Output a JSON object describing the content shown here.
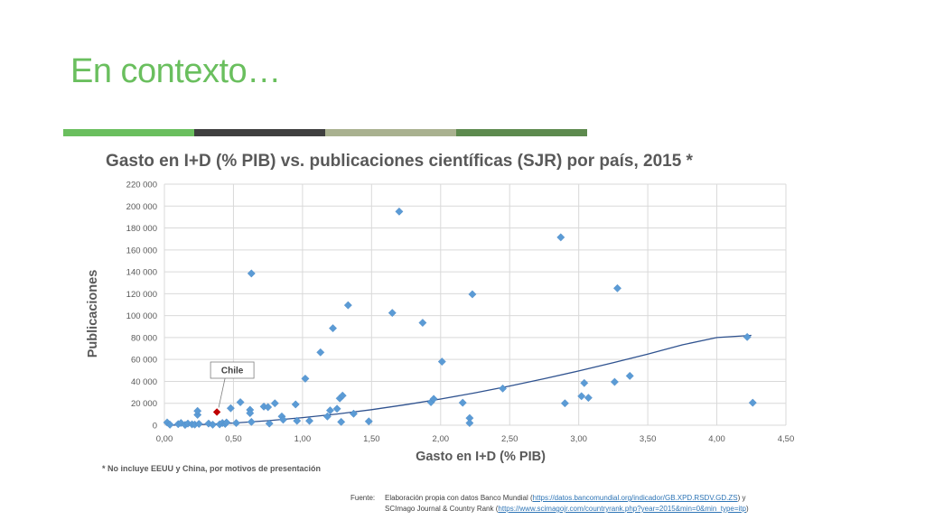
{
  "slide": {
    "title": "En contexto…",
    "bar_colors": [
      "#6abf5e",
      "#3f3f3f",
      "#a9b18f",
      "#5d8a4e"
    ]
  },
  "chart_data": {
    "type": "scatter",
    "title": "Gasto en I+D (% PIB) vs. publicaciones científicas (SJR) por país, 2015 *",
    "xlabel": "Gasto en I+D (% PIB)",
    "ylabel": "Publicaciones",
    "xlim": [
      0,
      4.5
    ],
    "ylim": [
      0,
      220000
    ],
    "x_ticks": [
      "0,00",
      "0,50",
      "1,00",
      "1,50",
      "2,00",
      "2,50",
      "3,00",
      "3,50",
      "4,00",
      "4,50"
    ],
    "y_ticks": [
      "0",
      "20 000",
      "40 000",
      "60 000",
      "80 000",
      "100 000",
      "120 000",
      "140 000",
      "160 000",
      "180 000",
      "200 000",
      "220 000"
    ],
    "grid": true,
    "point_color": "#5b9bd5",
    "highlight_color": "#c00000",
    "trend_color": "#2f528f",
    "highlight": {
      "label": "Chile",
      "x": 0.38,
      "y": 12000
    },
    "trendline": {
      "type": "power",
      "x": [
        0.05,
        0.25,
        0.5,
        0.75,
        1.0,
        1.25,
        1.5,
        1.75,
        2.0,
        2.25,
        2.5,
        2.75,
        3.0,
        3.25,
        3.5,
        3.75,
        4.0,
        4.25
      ],
      "y": [
        0,
        500,
        2000,
        4100,
        6900,
        10200,
        14200,
        18800,
        23900,
        29600,
        35800,
        42400,
        49500,
        57000,
        64900,
        73300,
        80000,
        82000
      ]
    },
    "points": [
      {
        "x": 0.02,
        "y": 2500
      },
      {
        "x": 0.04,
        "y": 500
      },
      {
        "x": 0.1,
        "y": 1000
      },
      {
        "x": 0.12,
        "y": 2000
      },
      {
        "x": 0.15,
        "y": 300
      },
      {
        "x": 0.17,
        "y": 1500
      },
      {
        "x": 0.2,
        "y": 800
      },
      {
        "x": 0.22,
        "y": 600
      },
      {
        "x": 0.24,
        "y": 9500
      },
      {
        "x": 0.24,
        "y": 13000
      },
      {
        "x": 0.25,
        "y": 1200
      },
      {
        "x": 0.32,
        "y": 1500
      },
      {
        "x": 0.35,
        "y": 500
      },
      {
        "x": 0.4,
        "y": 800
      },
      {
        "x": 0.42,
        "y": 2000
      },
      {
        "x": 0.44,
        "y": 1200
      },
      {
        "x": 0.45,
        "y": 2500
      },
      {
        "x": 0.48,
        "y": 15500
      },
      {
        "x": 0.52,
        "y": 2000
      },
      {
        "x": 0.55,
        "y": 21000
      },
      {
        "x": 0.62,
        "y": 14000
      },
      {
        "x": 0.62,
        "y": 11000
      },
      {
        "x": 0.63,
        "y": 138500
      },
      {
        "x": 0.63,
        "y": 3000
      },
      {
        "x": 0.72,
        "y": 17000
      },
      {
        "x": 0.75,
        "y": 16500
      },
      {
        "x": 0.76,
        "y": 1500
      },
      {
        "x": 0.8,
        "y": 20000
      },
      {
        "x": 0.85,
        "y": 8000
      },
      {
        "x": 0.86,
        "y": 5000
      },
      {
        "x": 0.95,
        "y": 19000
      },
      {
        "x": 0.96,
        "y": 4000
      },
      {
        "x": 1.02,
        "y": 42500
      },
      {
        "x": 1.05,
        "y": 4000
      },
      {
        "x": 1.13,
        "y": 66500
      },
      {
        "x": 1.18,
        "y": 8000
      },
      {
        "x": 1.2,
        "y": 13500
      },
      {
        "x": 1.22,
        "y": 88500
      },
      {
        "x": 1.25,
        "y": 15000
      },
      {
        "x": 1.27,
        "y": 24500
      },
      {
        "x": 1.28,
        "y": 3000
      },
      {
        "x": 1.29,
        "y": 27000
      },
      {
        "x": 1.33,
        "y": 109500
      },
      {
        "x": 1.37,
        "y": 10500
      },
      {
        "x": 1.48,
        "y": 3500
      },
      {
        "x": 1.65,
        "y": 102500
      },
      {
        "x": 1.7,
        "y": 195000
      },
      {
        "x": 1.87,
        "y": 93500
      },
      {
        "x": 1.93,
        "y": 21000
      },
      {
        "x": 1.95,
        "y": 24000
      },
      {
        "x": 2.01,
        "y": 58000
      },
      {
        "x": 2.16,
        "y": 20500
      },
      {
        "x": 2.21,
        "y": 6500
      },
      {
        "x": 2.21,
        "y": 2000
      },
      {
        "x": 2.23,
        "y": 119500
      },
      {
        "x": 2.45,
        "y": 33500
      },
      {
        "x": 2.87,
        "y": 171500
      },
      {
        "x": 2.9,
        "y": 20000
      },
      {
        "x": 3.02,
        "y": 26500
      },
      {
        "x": 3.04,
        "y": 38500
      },
      {
        "x": 3.07,
        "y": 25000
      },
      {
        "x": 3.26,
        "y": 39500
      },
      {
        "x": 3.28,
        "y": 125000
      },
      {
        "x": 3.37,
        "y": 45000
      },
      {
        "x": 4.22,
        "y": 80500
      },
      {
        "x": 4.26,
        "y": 20500
      }
    ]
  },
  "footnote": "* No incluye EEUU y China, por motivos de presentación",
  "source": {
    "label": "Fuente:",
    "line1_text": "Elaboración propia con datos Banco Mundial (",
    "line1_link": "https://datos.bancomundial.org/indicador/GB.XPD.RSDV.GD.ZS",
    "line1_end": ") y",
    "line2_text": "SCImago Journal & Country Rank  (",
    "line2_link": "https://www.scimagojr.com/countryrank.php?year=2015&min=0&min_type=itp",
    "line2_end": ")"
  }
}
